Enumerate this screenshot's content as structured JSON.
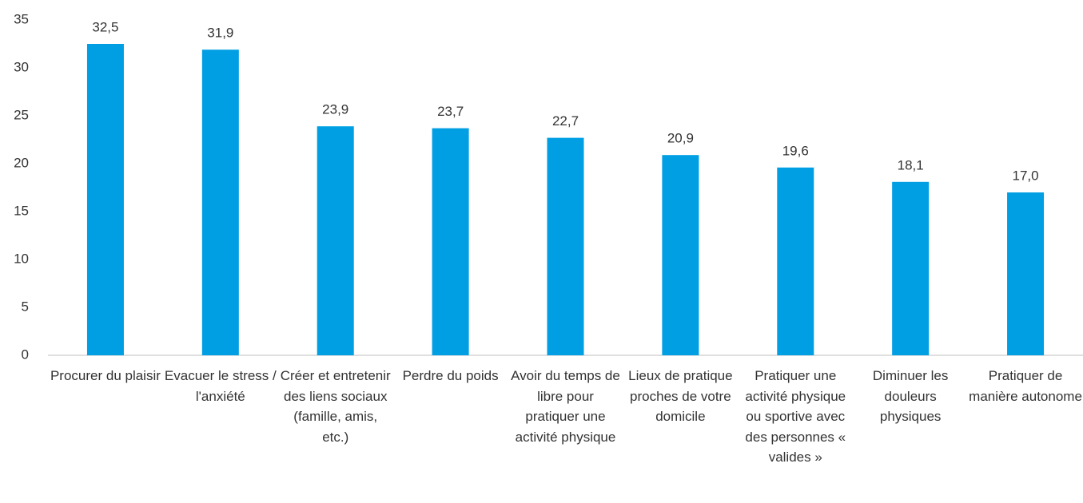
{
  "chart_data": {
    "type": "bar",
    "categories": [
      "Procurer du plaisir",
      "Evacuer le stress / l'anxiété",
      "Créer et entretenir des liens sociaux (famille, amis, etc.)",
      "Perdre du poids",
      "Avoir du temps de libre pour pratiquer une activité physique",
      "Lieux de pratique proches de votre domicile",
      "Pratiquer une activité physique ou sportive avec des personnes « valides »",
      "Diminuer les douleurs physiques",
      "Pratiquer de manière autonome"
    ],
    "values": [
      32.5,
      31.9,
      23.9,
      23.7,
      22.7,
      20.9,
      19.6,
      18.1,
      17.0
    ],
    "value_labels": [
      "32,5",
      "31,9",
      "23,9",
      "23,7",
      "22,7",
      "20,9",
      "19,6",
      "18,1",
      "17,0"
    ],
    "color": "#009fe3",
    "ylim": [
      0,
      35
    ],
    "yticks": [
      0,
      5,
      10,
      15,
      20,
      25,
      30,
      35
    ],
    "grid": false
  }
}
